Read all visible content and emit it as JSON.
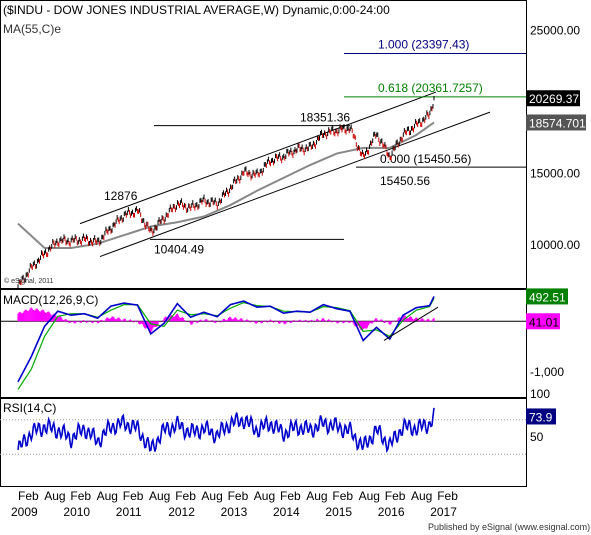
{
  "header": {
    "title": "($INDU - DOW JONES INDUSTRIAL AVERAGE,W) Dynamic,0:00-24:00",
    "ma_label": "MA(55,C)e",
    "copyright": "© eSignal, 2011",
    "footer": "Published by eSignal (www.esignal.com)"
  },
  "colors": {
    "price_up": "#000000",
    "price_down": "#cc0000",
    "ma": "#888888",
    "macd_line": "#0000cc",
    "signal_line": "#00aa00",
    "histogram": "#ff00ff",
    "rsi": "#0000cc",
    "fib_level_1": "#000080",
    "fib_level_0618": "#008000",
    "current_price_bg": "#000000",
    "ma_price_bg": "#555555",
    "macd_box_bg": "#008000",
    "hist_box_bg": "#ff00ff",
    "rsi_box_bg": "#000080"
  },
  "chart_data": {
    "type": "line",
    "main_panel": {
      "ylim": [
        7000,
        27000
      ],
      "y_ticks": [
        "25000.00",
        "20000.00",
        "15000.00",
        "10000.00"
      ],
      "current_price_label": "20269.37",
      "ma_price_label": "18574.701",
      "series": [
        {
          "name": "$INDU",
          "kind": "close",
          "x": [
            "2009-02",
            "2009-05",
            "2009-08",
            "2009-11",
            "2010-02",
            "2010-05",
            "2010-08",
            "2010-11",
            "2011-02",
            "2011-05",
            "2011-08",
            "2011-11",
            "2012-02",
            "2012-05",
            "2012-08",
            "2012-11",
            "2013-02",
            "2013-05",
            "2013-08",
            "2013-11",
            "2014-02",
            "2014-05",
            "2014-08",
            "2014-11",
            "2015-02",
            "2015-05",
            "2015-08",
            "2015-11",
            "2016-02",
            "2016-05",
            "2016-08",
            "2016-11",
            "2016-12"
          ],
          "values": [
            7100,
            8400,
            9400,
            10300,
            10300,
            10400,
            10200,
            11200,
            12100,
            12400,
            10900,
            11900,
            12900,
            12600,
            13100,
            12900,
            14000,
            15100,
            14900,
            15900,
            16200,
            16700,
            16800,
            17800,
            18000,
            18200,
            16100,
            17800,
            16200,
            17700,
            18400,
            19100,
            20269
          ]
        },
        {
          "name": "MA(55,C)e",
          "kind": "ma",
          "x": [
            "2009-02",
            "2009-08",
            "2010-02",
            "2010-08",
            "2011-02",
            "2011-08",
            "2012-02",
            "2012-08",
            "2013-02",
            "2013-08",
            "2014-02",
            "2014-08",
            "2015-02",
            "2015-08",
            "2016-02",
            "2016-08",
            "2016-12"
          ],
          "values": [
            11500,
            9800,
            9800,
            10100,
            10700,
            11300,
            11600,
            12000,
            12800,
            13800,
            14700,
            15600,
            16400,
            16800,
            16800,
            17700,
            18575
          ]
        }
      ],
      "annotations": [
        {
          "text": "1.000 (23397.43)",
          "value": 23397.43,
          "color": "fib_level_1"
        },
        {
          "text": "0.618 (20361.7257)",
          "value": 20361.7257,
          "color": "fib_level_0618"
        },
        {
          "text": "18351.36",
          "value": 18351.36,
          "color": "price_up"
        },
        {
          "text": "0.000 (15450.56)",
          "value": 15450.56,
          "color": "price_up"
        },
        {
          "text": "15450.56",
          "value": 15450.56,
          "color": "price_up"
        },
        {
          "text": "12876",
          "value": 12876,
          "color": "price_up"
        },
        {
          "text": "10404.49",
          "value": 10404.49,
          "color": "price_up"
        }
      ]
    },
    "macd_panel": {
      "label": "MACD(12,26,9,C)",
      "ylim": [
        -1500,
        600
      ],
      "y_ticks": [
        "-1,000"
      ],
      "macd_value_label": "492.51",
      "hist_value_label": "41.01",
      "x": [
        "2009-02",
        "2009-05",
        "2009-08",
        "2009-11",
        "2010-02",
        "2010-05",
        "2010-08",
        "2010-11",
        "2011-02",
        "2011-05",
        "2011-08",
        "2011-11",
        "2012-02",
        "2012-05",
        "2012-08",
        "2012-11",
        "2013-02",
        "2013-05",
        "2013-08",
        "2013-11",
        "2014-02",
        "2014-05",
        "2014-08",
        "2014-11",
        "2015-02",
        "2015-05",
        "2015-08",
        "2015-11",
        "2016-02",
        "2016-05",
        "2016-08",
        "2016-11",
        "2016-12"
      ],
      "macd": [
        -1200,
        -700,
        -100,
        200,
        120,
        150,
        60,
        300,
        360,
        320,
        -250,
        -40,
        350,
        80,
        180,
        90,
        330,
        400,
        280,
        300,
        160,
        200,
        180,
        330,
        250,
        200,
        -380,
        -120,
        -350,
        120,
        270,
        310,
        492.51
      ],
      "signal": [
        -1350,
        -950,
        -300,
        100,
        150,
        150,
        80,
        220,
        330,
        330,
        -50,
        -100,
        220,
        130,
        150,
        110,
        260,
        370,
        310,
        290,
        200,
        190,
        180,
        290,
        270,
        210,
        -200,
        -170,
        -300,
        20,
        220,
        290,
        451.5
      ],
      "histogram": [
        150,
        250,
        200,
        100,
        -30,
        0,
        -20,
        80,
        30,
        -10,
        -200,
        60,
        130,
        -50,
        30,
        -20,
        70,
        30,
        -30,
        10,
        -40,
        10,
        0,
        40,
        -20,
        -10,
        -180,
        50,
        -50,
        100,
        50,
        20,
        41.01
      ]
    },
    "rsi_panel": {
      "label": "RSI(14,C)",
      "ylim": [
        0,
        100
      ],
      "y_ticks": [
        "100",
        "50"
      ],
      "levels": [
        70,
        30
      ],
      "value_label": "73.9",
      "x": [
        "2009-02",
        "2009-05",
        "2009-08",
        "2009-11",
        "2010-02",
        "2010-05",
        "2010-08",
        "2010-11",
        "2011-02",
        "2011-05",
        "2011-08",
        "2011-11",
        "2012-02",
        "2012-05",
        "2012-08",
        "2012-11",
        "2013-02",
        "2013-05",
        "2013-08",
        "2013-11",
        "2014-02",
        "2014-05",
        "2014-08",
        "2014-11",
        "2015-02",
        "2015-05",
        "2015-08",
        "2015-11",
        "2016-02",
        "2016-05",
        "2016-08",
        "2016-11",
        "2016-12"
      ],
      "values": [
        35,
        55,
        62,
        58,
        48,
        60,
        45,
        62,
        66,
        60,
        35,
        58,
        64,
        55,
        60,
        52,
        66,
        70,
        58,
        66,
        54,
        62,
        58,
        66,
        62,
        57,
        38,
        58,
        40,
        62,
        60,
        65,
        73.9
      ]
    },
    "x_axis": {
      "month_labels": [
        "Feb",
        "Aug",
        "Feb",
        "Aug",
        "Feb",
        "Aug",
        "Feb",
        "Aug",
        "Feb",
        "Aug",
        "Feb",
        "Aug",
        "Feb",
        "Aug",
        "Feb",
        "Aug",
        "Feb"
      ],
      "year_labels": [
        "2009",
        "2010",
        "2011",
        "2012",
        "2013",
        "2014",
        "2015",
        "2016",
        "2017"
      ]
    }
  }
}
